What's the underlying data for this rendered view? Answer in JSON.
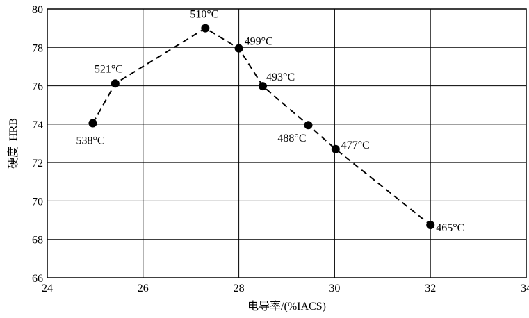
{
  "chart_data": {
    "type": "scatter",
    "xlabel": "电导率/(%IACS)",
    "ylabel": "硬度  HRB",
    "xlim": [
      24,
      34
    ],
    "ylim": [
      66,
      80
    ],
    "xticks": [
      24,
      26,
      28,
      30,
      32,
      34
    ],
    "yticks": [
      66,
      68,
      70,
      72,
      74,
      76,
      78,
      80
    ],
    "grid": true,
    "line_style": "dashed",
    "series": [
      {
        "points": [
          {
            "x": 24.95,
            "y": 74.05,
            "label": "538°C"
          },
          {
            "x": 25.42,
            "y": 76.12,
            "label": "521°C"
          },
          {
            "x": 27.3,
            "y": 79.0,
            "label": "510°C"
          },
          {
            "x": 28.0,
            "y": 77.95,
            "label": "499°C"
          },
          {
            "x": 28.5,
            "y": 75.98,
            "label": "493°C"
          },
          {
            "x": 29.45,
            "y": 73.95,
            "label": "488°C"
          },
          {
            "x": 30.02,
            "y": 72.7,
            "label": "477°C"
          },
          {
            "x": 32.0,
            "y": 68.75,
            "label": "465°C"
          }
        ]
      }
    ]
  }
}
